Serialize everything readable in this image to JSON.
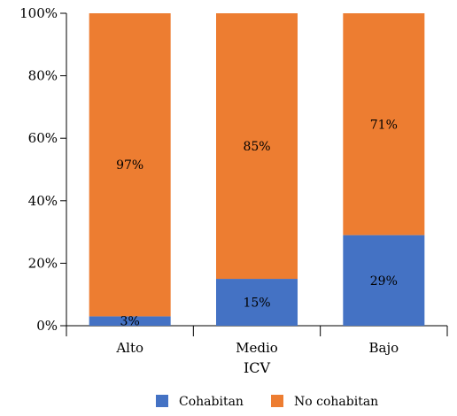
{
  "chart_data": {
    "type": "bar",
    "stacked": true,
    "normalized": true,
    "categories": [
      "Alto",
      "Medio",
      "Bajo"
    ],
    "series": [
      {
        "name": "Cohabitan",
        "values": [
          3,
          15,
          29
        ],
        "labels": [
          "3%",
          "15%",
          "29%"
        ],
        "color": "#4472C4"
      },
      {
        "name": "No cohabitan",
        "values": [
          97,
          85,
          71
        ],
        "labels": [
          "97%",
          "85%",
          "71%"
        ],
        "color": "#ED7D31"
      }
    ],
    "title": "",
    "xlabel": "ICV",
    "ylabel": "",
    "ylim": [
      0,
      100
    ],
    "yticks": [
      0,
      20,
      40,
      60,
      80,
      100
    ],
    "ytick_labels": [
      "0%",
      "20%",
      "40%",
      "60%",
      "80%",
      "100%"
    ],
    "grid": false,
    "legend_position": "bottom"
  }
}
